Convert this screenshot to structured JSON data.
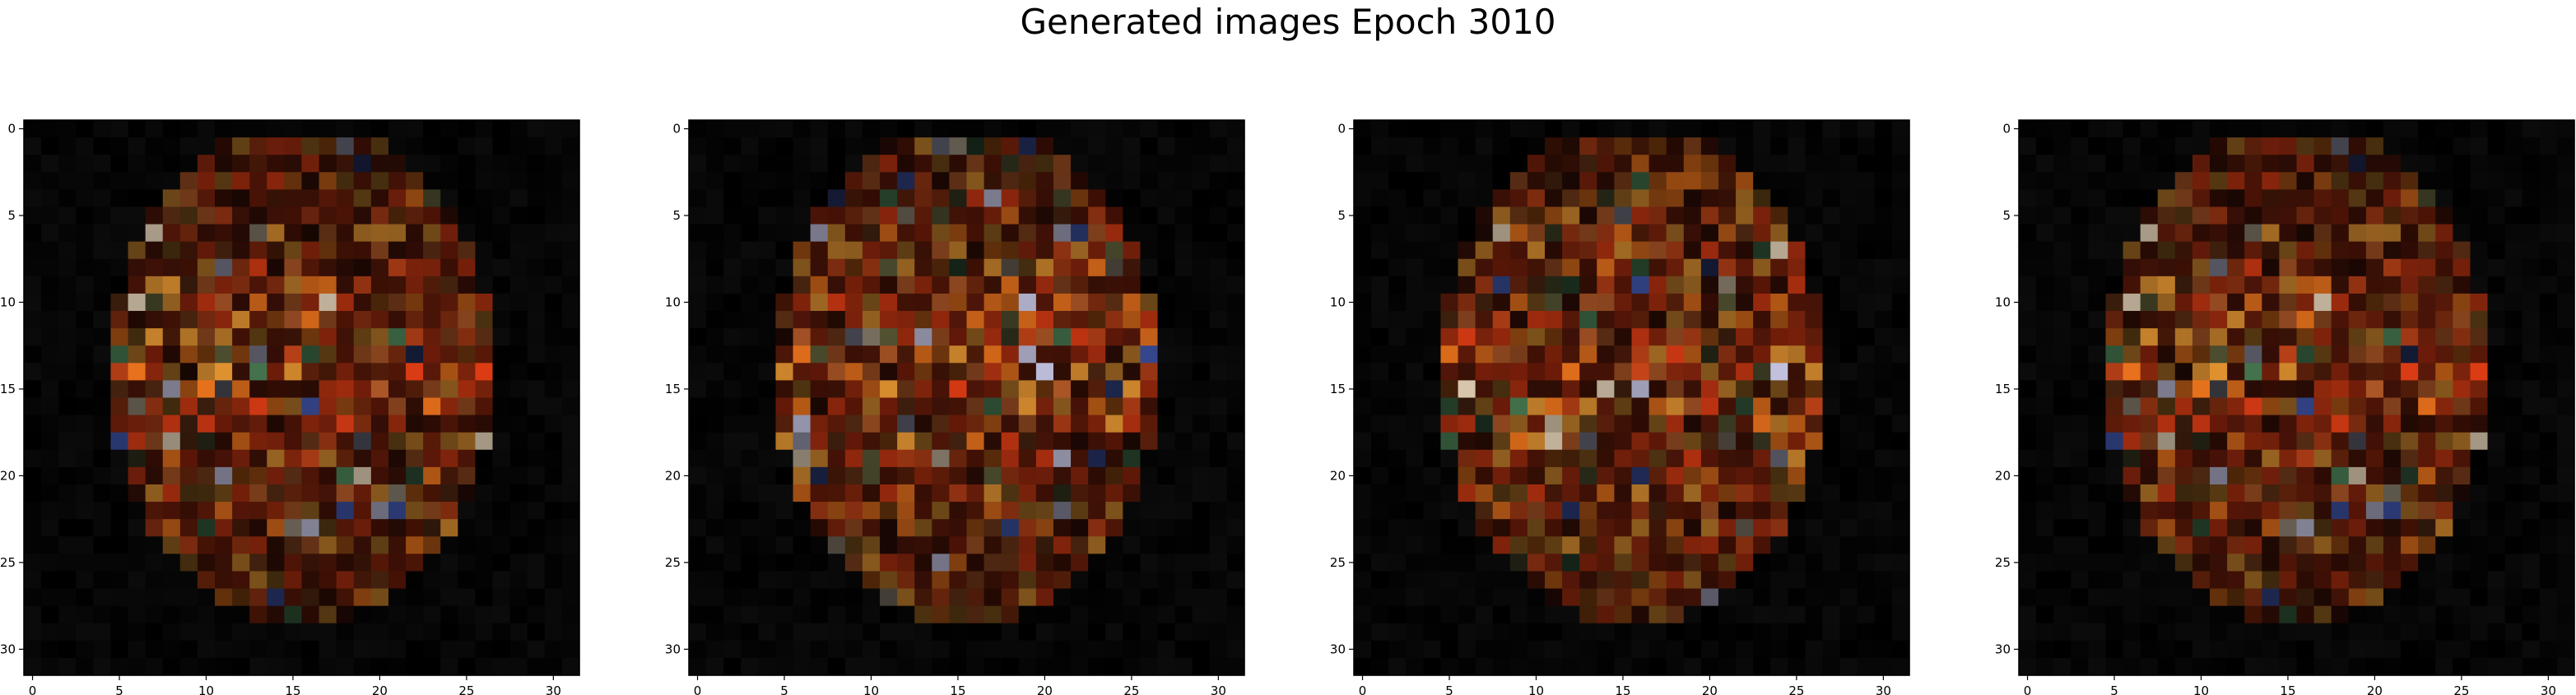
{
  "figure": {
    "suptitle": "Generated images Epoch 3010"
  },
  "chart_data": [
    {
      "type": "heatmap",
      "title": "",
      "xlabel": "",
      "ylabel": "",
      "xlim": [
        -0.5,
        31.5
      ],
      "ylim": [
        31.5,
        -0.5
      ],
      "xticks": [
        0,
        5,
        10,
        15,
        20,
        25,
        30
      ],
      "yticks": [
        0,
        5,
        10,
        15,
        20,
        25,
        30
      ],
      "grid": false,
      "pixel_grid": [
        32,
        32
      ],
      "seed": 11
    },
    {
      "type": "heatmap",
      "title": "",
      "xlabel": "",
      "ylabel": "",
      "xlim": [
        -0.5,
        31.5
      ],
      "ylim": [
        31.5,
        -0.5
      ],
      "xticks": [
        0,
        5,
        10,
        15,
        20,
        25,
        30
      ],
      "yticks": [
        0,
        5,
        10,
        15,
        20,
        25,
        30
      ],
      "grid": false,
      "pixel_grid": [
        32,
        32
      ],
      "seed": 23
    },
    {
      "type": "heatmap",
      "title": "",
      "xlabel": "",
      "ylabel": "",
      "xlim": [
        -0.5,
        31.5
      ],
      "ylim": [
        31.5,
        -0.5
      ],
      "xticks": [
        0,
        5,
        10,
        15,
        20,
        25,
        30
      ],
      "yticks": [
        0,
        5,
        10,
        15,
        20,
        25,
        30
      ],
      "grid": false,
      "pixel_grid": [
        32,
        32
      ],
      "seed": 37
    },
    {
      "type": "heatmap",
      "title": "",
      "xlabel": "",
      "ylabel": "",
      "xlim": [
        -0.5,
        31.5
      ],
      "ylim": [
        31.5,
        -0.5
      ],
      "xticks": [
        0,
        5,
        10,
        15,
        20,
        25,
        30
      ],
      "yticks": [
        0,
        5,
        10,
        15,
        20,
        25,
        30
      ],
      "grid": false,
      "pixel_grid": [
        32,
        32
      ],
      "seed": 11
    }
  ]
}
